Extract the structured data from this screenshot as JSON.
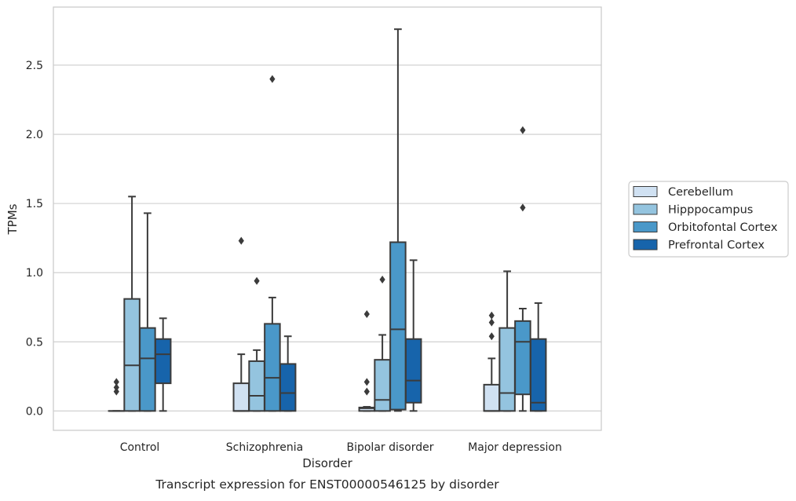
{
  "colors": {
    "Cerebellum": "#d0e1f2",
    "Hipppocampus": "#94c4df",
    "Orbitofontal Cortex": "#4a98c9",
    "Prefrontal Cortex": "#1764ab",
    "edge": "#3b3b3b",
    "grid": "#cccccc",
    "frame": "#cccccc"
  },
  "chart_data": {
    "type": "boxplot",
    "caption": "Transcript expression for ENST00000546125 by disorder",
    "xlabel": "Disorder",
    "ylabel": "TPMs",
    "ylim": [
      -0.14,
      2.92
    ],
    "yticks": [
      0.0,
      0.5,
      1.0,
      1.5,
      2.0,
      2.5
    ],
    "ytick_labels": [
      "0.0",
      "0.5",
      "1.0",
      "1.5",
      "2.0",
      "2.5"
    ],
    "grid": "horizontal",
    "legend_position": "right",
    "categories": [
      "Control",
      "Schizophrenia",
      "Bipolar disorder",
      "Major depression"
    ],
    "series": [
      {
        "name": "Cerebellum",
        "boxes": [
          {
            "q1": 0.0,
            "median": 0.0,
            "q3": 0.0,
            "whisker_low": 0.0,
            "whisker_high": 0.0,
            "outliers": [
              0.14,
              0.17,
              0.21
            ]
          },
          {
            "q1": 0.0,
            "median": 0.0,
            "q3": 0.2,
            "whisker_low": 0.0,
            "whisker_high": 0.41,
            "outliers": [
              1.23
            ]
          },
          {
            "q1": 0.0,
            "median": 0.02,
            "q3": 0.025,
            "whisker_low": 0.0,
            "whisker_high": 0.03,
            "outliers": [
              0.14,
              0.21,
              0.7
            ]
          },
          {
            "q1": 0.0,
            "median": 0.0,
            "q3": 0.19,
            "whisker_low": 0.0,
            "whisker_high": 0.38,
            "outliers": [
              0.54,
              0.64,
              0.69
            ]
          }
        ]
      },
      {
        "name": "Hipppocampus",
        "boxes": [
          {
            "q1": 0.0,
            "median": 0.33,
            "q3": 0.81,
            "whisker_low": 0.0,
            "whisker_high": 1.55,
            "outliers": []
          },
          {
            "q1": 0.0,
            "median": 0.11,
            "q3": 0.36,
            "whisker_low": 0.0,
            "whisker_high": 0.44,
            "outliers": [
              0.94
            ]
          },
          {
            "q1": 0.0,
            "median": 0.08,
            "q3": 0.37,
            "whisker_low": 0.0,
            "whisker_high": 0.55,
            "outliers": [
              0.95
            ]
          },
          {
            "q1": 0.0,
            "median": 0.13,
            "q3": 0.6,
            "whisker_low": 0.0,
            "whisker_high": 1.01,
            "outliers": []
          }
        ]
      },
      {
        "name": "Orbitofontal Cortex",
        "boxes": [
          {
            "q1": 0.0,
            "median": 0.38,
            "q3": 0.6,
            "whisker_low": 0.0,
            "whisker_high": 1.43,
            "outliers": []
          },
          {
            "q1": 0.0,
            "median": 0.24,
            "q3": 0.63,
            "whisker_low": 0.0,
            "whisker_high": 0.82,
            "outliers": [
              2.4
            ]
          },
          {
            "q1": 0.01,
            "median": 0.59,
            "q3": 1.22,
            "whisker_low": 0.0,
            "whisker_high": 2.76,
            "outliers": []
          },
          {
            "q1": 0.12,
            "median": 0.5,
            "q3": 0.65,
            "whisker_low": 0.0,
            "whisker_high": 0.74,
            "outliers": [
              1.47,
              2.03
            ]
          }
        ]
      },
      {
        "name": "Prefrontal Cortex",
        "boxes": [
          {
            "q1": 0.2,
            "median": 0.41,
            "q3": 0.52,
            "whisker_low": 0.0,
            "whisker_high": 0.67,
            "outliers": []
          },
          {
            "q1": 0.0,
            "median": 0.13,
            "q3": 0.34,
            "whisker_low": 0.0,
            "whisker_high": 0.54,
            "outliers": []
          },
          {
            "q1": 0.06,
            "median": 0.22,
            "q3": 0.52,
            "whisker_low": 0.0,
            "whisker_high": 1.09,
            "outliers": []
          },
          {
            "q1": 0.0,
            "median": 0.06,
            "q3": 0.52,
            "whisker_low": 0.0,
            "whisker_high": 0.78,
            "outliers": []
          }
        ]
      }
    ]
  }
}
